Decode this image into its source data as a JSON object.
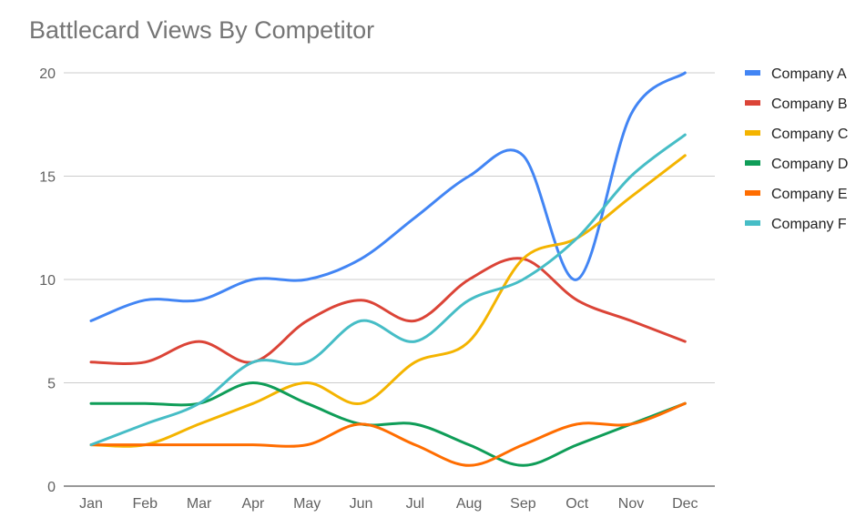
{
  "chart_data": {
    "type": "line",
    "title": "Battlecard Views By Competitor",
    "xlabel": "",
    "ylabel": "",
    "categories": [
      "Jan",
      "Feb",
      "Mar",
      "Apr",
      "May",
      "Jun",
      "Jul",
      "Aug",
      "Sep",
      "Oct",
      "Nov",
      "Dec"
    ],
    "ylim": [
      0,
      20
    ],
    "yticks": [
      0,
      5,
      10,
      15,
      20
    ],
    "grid": true,
    "legend_position": "right",
    "smooth": true,
    "series": [
      {
        "name": "Company A",
        "color": "#4285f4",
        "values": [
          8,
          9,
          9,
          10,
          10,
          11,
          13,
          15,
          16,
          10,
          18,
          20
        ]
      },
      {
        "name": "Company B",
        "color": "#db4437",
        "values": [
          6,
          6,
          7,
          6,
          8,
          9,
          8,
          10,
          11,
          9,
          8,
          7
        ]
      },
      {
        "name": "Company C",
        "color": "#f4b400",
        "values": [
          2,
          2,
          3,
          4,
          5,
          4,
          6,
          7,
          11,
          12,
          14,
          16
        ]
      },
      {
        "name": "Company D",
        "color": "#0f9d58",
        "values": [
          4,
          4,
          4,
          5,
          4,
          3,
          3,
          2,
          1,
          2,
          3,
          4
        ]
      },
      {
        "name": "Company E",
        "color": "#ff6d00",
        "values": [
          2,
          2,
          2,
          2,
          2,
          3,
          2,
          1,
          2,
          3,
          3,
          4
        ]
      },
      {
        "name": "Company F",
        "color": "#46bdc6",
        "values": [
          2,
          3,
          4,
          6,
          6,
          8,
          7,
          9,
          10,
          12,
          15,
          17
        ]
      }
    ]
  }
}
